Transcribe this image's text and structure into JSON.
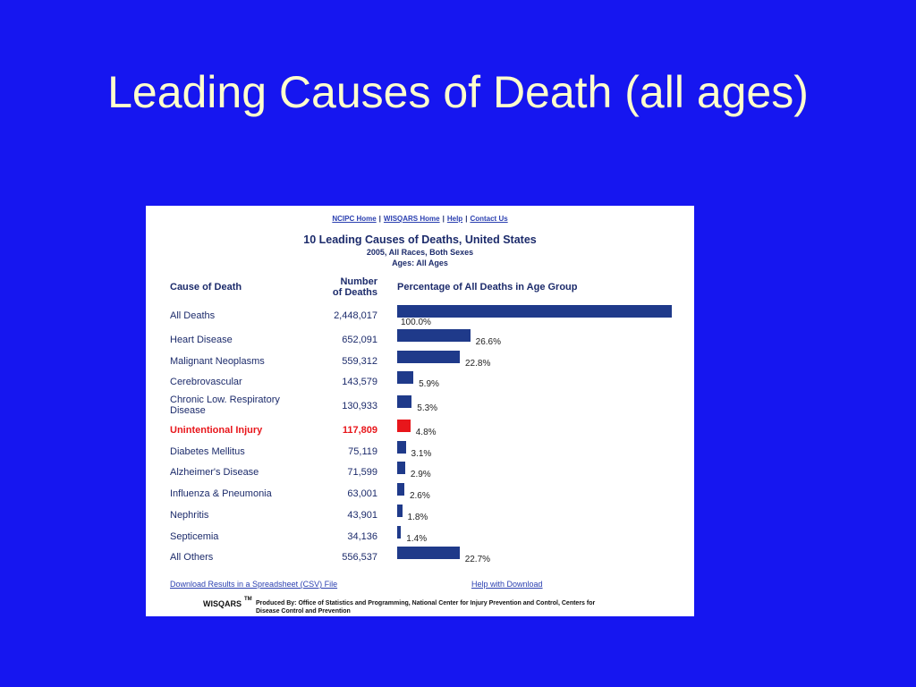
{
  "slide": {
    "title": "Leading Causes of Death (all ages)"
  },
  "panel": {
    "links": [
      "NCIPC Home",
      "WISQARS Home",
      "Help",
      "Contact Us"
    ],
    "title": "10 Leading Causes of Deaths, United States",
    "subtitle": [
      "2005, All Races, Both Sexes",
      "Ages: All Ages"
    ],
    "headers": {
      "cause": "Cause of Death",
      "number": [
        "Number",
        "of Deaths"
      ],
      "percent": "Percentage of All Deaths in Age Group"
    },
    "bar_color": "#1f3a8a",
    "rows": [
      {
        "cause": "All Deaths",
        "deaths": "2,448,017",
        "percent": 100.0,
        "percent_label": "100.0%"
      },
      {
        "cause": "Heart Disease",
        "deaths": "652,091",
        "percent": 26.6,
        "percent_label": "26.6%"
      },
      {
        "cause": "Malignant Neoplasms",
        "deaths": "559,312",
        "percent": 22.8,
        "percent_label": "22.8%"
      },
      {
        "cause": "Cerebrovascular",
        "deaths": "143,579",
        "percent": 5.9,
        "percent_label": "5.9%"
      },
      {
        "cause": "Chronic Low. Respiratory Disease",
        "deaths": "130,933",
        "percent": 5.3,
        "percent_label": "5.3%"
      },
      {
        "cause": "Unintentional Injury",
        "deaths": "117,809",
        "percent": 4.8,
        "percent_label": "4.8%",
        "color": "#e8161b"
      },
      {
        "cause": "Diabetes Mellitus",
        "deaths": "75,119",
        "percent": 3.1,
        "percent_label": "3.1%"
      },
      {
        "cause": "Alzheimer's Disease",
        "deaths": "71,599",
        "percent": 2.9,
        "percent_label": "2.9%"
      },
      {
        "cause": "Influenza & Pneumonia",
        "deaths": "63,001",
        "percent": 2.6,
        "percent_label": "2.6%"
      },
      {
        "cause": "Nephritis",
        "deaths": "43,901",
        "percent": 1.8,
        "percent_label": "1.8%"
      },
      {
        "cause": "Septicemia",
        "deaths": "34,136",
        "percent": 1.4,
        "percent_label": "1.4%"
      },
      {
        "cause": "All Others",
        "deaths": "556,537",
        "percent": 22.7,
        "percent_label": "22.7%"
      }
    ],
    "download_link": "Download Results in a Spreadsheet (CSV) File",
    "help_link": "Help with Download",
    "footer_brand": "WISQARS",
    "footer_tm": "TM",
    "footer_lines": [
      "Produced By: Office of Statistics and Programming, National Center for Injury Prevention and Control, Centers for",
      "Disease Control and Prevention"
    ]
  }
}
